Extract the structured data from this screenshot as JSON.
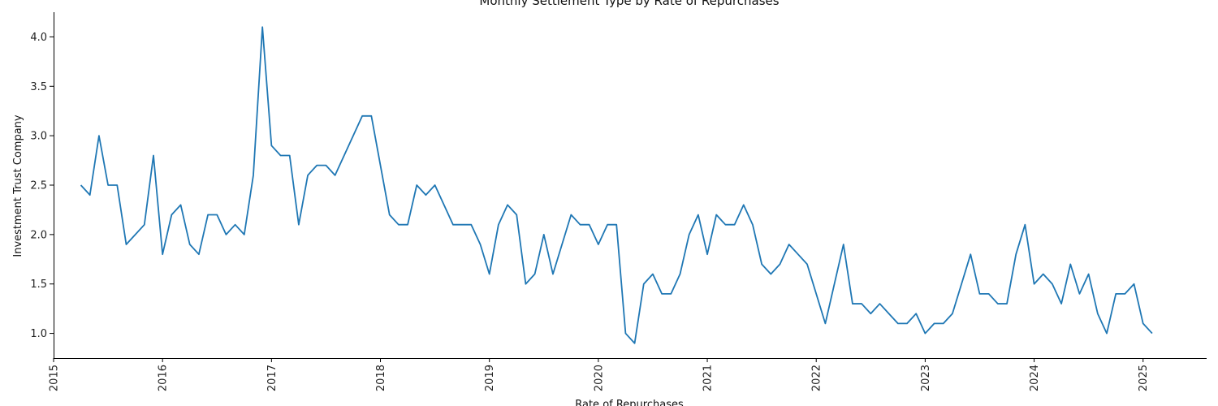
{
  "chart_data": {
    "type": "line",
    "title": "Monthly Settlement Type by Rate of Repurchases",
    "xlabel": "Rate of Repurchases",
    "ylabel": "Investment Trust Company",
    "xlim": [
      "2015-01-01",
      "2025-08-01"
    ],
    "ylim": [
      0.75,
      4.25
    ],
    "x_ticks": [
      "2015",
      "2016",
      "2017",
      "2018",
      "2019",
      "2020",
      "2021",
      "2022",
      "2023",
      "2024",
      "2025"
    ],
    "y_ticks": [
      "1.0",
      "1.5",
      "2.0",
      "2.5",
      "3.0",
      "3.5",
      "4.0"
    ],
    "grid": false,
    "series": [
      {
        "color": "#1f77b4",
        "x": [
          "2015-04",
          "2015-05",
          "2015-06",
          "2015-07",
          "2015-08",
          "2015-09",
          "2015-10",
          "2015-11",
          "2015-12",
          "2016-01",
          "2016-02",
          "2016-03",
          "2016-04",
          "2016-05",
          "2016-06",
          "2016-07",
          "2016-08",
          "2016-09",
          "2016-10",
          "2016-11",
          "2016-12",
          "2017-01",
          "2017-02",
          "2017-03",
          "2017-04",
          "2017-05",
          "2017-06",
          "2017-07",
          "2017-08",
          "2017-09",
          "2017-10",
          "2017-11",
          "2017-12",
          "2018-01",
          "2018-02",
          "2018-03",
          "2018-04",
          "2018-05",
          "2018-06",
          "2018-07",
          "2018-08",
          "2018-09",
          "2018-10",
          "2018-11",
          "2018-12",
          "2019-01",
          "2019-02",
          "2019-03",
          "2019-04",
          "2019-05",
          "2019-06",
          "2019-07",
          "2019-08",
          "2019-09",
          "2019-10",
          "2019-11",
          "2019-12",
          "2020-01",
          "2020-02",
          "2020-03",
          "2020-04",
          "2020-05",
          "2020-06",
          "2020-07",
          "2020-08",
          "2020-09",
          "2020-10",
          "2020-11",
          "2020-12",
          "2021-01",
          "2021-02",
          "2021-03",
          "2021-04",
          "2021-05",
          "2021-06",
          "2021-07",
          "2021-08",
          "2021-09",
          "2021-10",
          "2021-11",
          "2021-12",
          "2022-01",
          "2022-02",
          "2022-03",
          "2022-04",
          "2022-05",
          "2022-06",
          "2022-07",
          "2022-08",
          "2022-09",
          "2022-10",
          "2022-11",
          "2022-12",
          "2023-01",
          "2023-02",
          "2023-03",
          "2023-04",
          "2023-05",
          "2023-06",
          "2023-07",
          "2023-08",
          "2023-09",
          "2023-10",
          "2023-11",
          "2023-12",
          "2024-01",
          "2024-02",
          "2024-03",
          "2024-04",
          "2024-05",
          "2024-06",
          "2024-07",
          "2024-08",
          "2024-09",
          "2024-10",
          "2024-11",
          "2024-12",
          "2025-01",
          "2025-02"
        ],
        "values": [
          2.5,
          2.4,
          3.0,
          2.5,
          2.5,
          1.9,
          2.0,
          2.1,
          2.8,
          1.8,
          2.2,
          2.3,
          1.9,
          1.8,
          2.2,
          2.2,
          2.0,
          2.1,
          2.0,
          2.6,
          4.1,
          2.9,
          2.8,
          2.8,
          2.1,
          2.6,
          2.7,
          2.7,
          2.6,
          2.8,
          3.0,
          3.2,
          3.2,
          2.7,
          2.2,
          2.1,
          2.1,
          2.5,
          2.4,
          2.5,
          2.3,
          2.1,
          2.1,
          2.1,
          1.9,
          1.6,
          2.1,
          2.3,
          2.2,
          1.5,
          1.6,
          2.0,
          1.6,
          1.9,
          2.2,
          2.1,
          2.1,
          1.9,
          2.1,
          2.1,
          1.0,
          0.9,
          1.5,
          1.6,
          1.4,
          1.4,
          1.6,
          2.0,
          2.2,
          1.8,
          2.2,
          2.1,
          2.1,
          2.3,
          2.1,
          1.7,
          1.6,
          1.7,
          1.9,
          1.8,
          1.7,
          1.4,
          1.1,
          1.5,
          1.9,
          1.3,
          1.3,
          1.2,
          1.3,
          1.2,
          1.1,
          1.1,
          1.2,
          1.0,
          1.1,
          1.1,
          1.2,
          1.5,
          1.8,
          1.4,
          1.4,
          1.3,
          1.3,
          1.8,
          2.1,
          1.5,
          1.6,
          1.5,
          1.3,
          1.7,
          1.4,
          1.6,
          1.2,
          1.0,
          1.4,
          1.4,
          1.5,
          1.1,
          1.0
        ]
      }
    ]
  }
}
